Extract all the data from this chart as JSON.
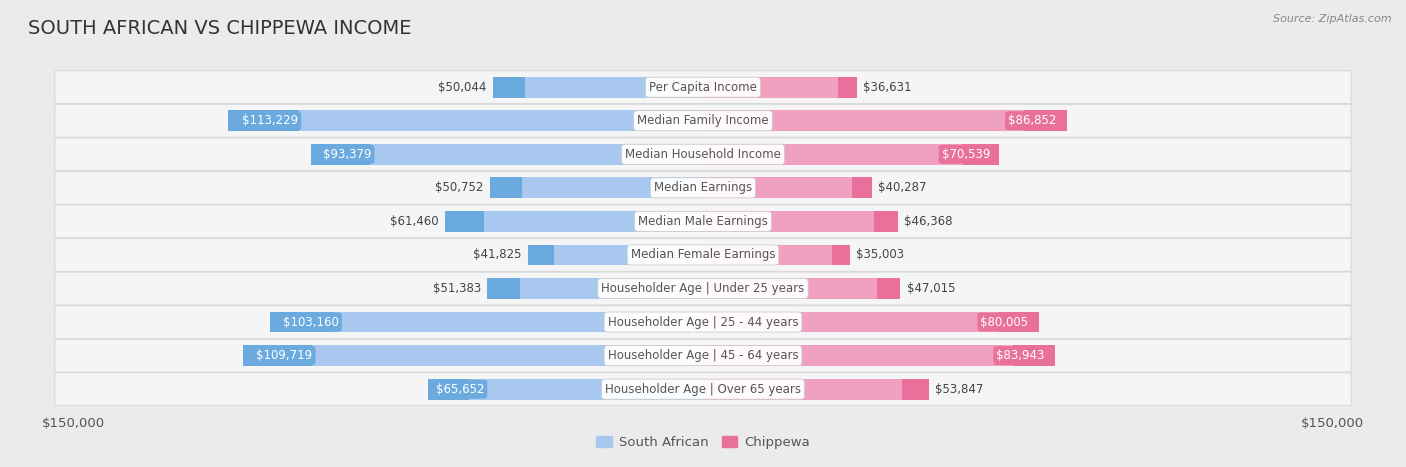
{
  "title": "SOUTH AFRICAN VS CHIPPEWA INCOME",
  "source": "Source: ZipAtlas.com",
  "categories": [
    "Per Capita Income",
    "Median Family Income",
    "Median Household Income",
    "Median Earnings",
    "Median Male Earnings",
    "Median Female Earnings",
    "Householder Age | Under 25 years",
    "Householder Age | 25 - 44 years",
    "Householder Age | 45 - 64 years",
    "Householder Age | Over 65 years"
  ],
  "south_african": [
    50044,
    113229,
    93379,
    50752,
    61460,
    41825,
    51383,
    103160,
    109719,
    65652
  ],
  "chippewa": [
    36631,
    86852,
    70539,
    40287,
    46368,
    35003,
    47015,
    80005,
    83943,
    53847
  ],
  "south_african_labels": [
    "$50,044",
    "$113,229",
    "$93,379",
    "$50,752",
    "$61,460",
    "$41,825",
    "$51,383",
    "$103,160",
    "$109,719",
    "$65,652"
  ],
  "chippewa_labels": [
    "$36,631",
    "$86,852",
    "$70,539",
    "$40,287",
    "$46,368",
    "$35,003",
    "$47,015",
    "$80,005",
    "$83,943",
    "$53,847"
  ],
  "max_val": 150000,
  "blue_light": "#a8c8f0",
  "blue_medium": "#6aaade",
  "pink_light": "#f0a0c0",
  "pink_medium": "#e8709a",
  "background_color": "#ebebeb",
  "row_bg_color": "#f5f5f5",
  "label_inside_color": "#ffffff",
  "label_outside_color": "#444444",
  "category_text_color": "#555555",
  "inside_threshold": 65000,
  "bar_height": 0.62,
  "title_fontsize": 14,
  "value_fontsize": 8.5,
  "cat_fontsize": 8.5,
  "axis_fontsize": 9.5
}
